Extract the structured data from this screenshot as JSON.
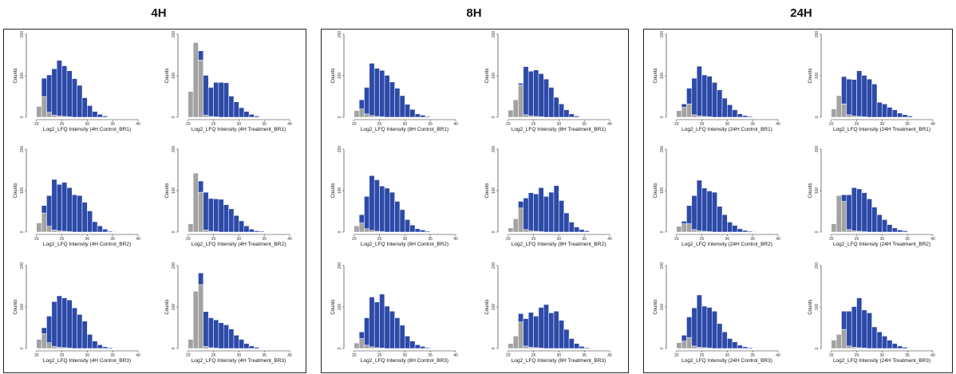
{
  "colors": {
    "gray": "#a3a3a3",
    "blue": "#2d4aa8",
    "edge": "#ffffff",
    "axis": "#222222"
  },
  "conditions": [
    {
      "title": "4H"
    },
    {
      "title": "8H"
    },
    {
      "title": "24H"
    }
  ],
  "chart_data": [
    {
      "type": "bar",
      "condition": "4H",
      "xlabel": "Log2_LFQ Intensity (4H Control_BR1)",
      "ylabel": "Counts",
      "xlim": [
        18,
        40
      ],
      "ylim": [
        0,
        200
      ],
      "xticks": [
        20,
        25,
        30,
        35,
        40
      ],
      "yticks": [
        0,
        100,
        200
      ],
      "bins": [
        20,
        21,
        22,
        23,
        24,
        25,
        26,
        27,
        28,
        29,
        30,
        31,
        32,
        33,
        34,
        35
      ],
      "gray": [
        26,
        50,
        12,
        5,
        3,
        2,
        1,
        0,
        0,
        0,
        0,
        0,
        0,
        0,
        0,
        0
      ],
      "blue": [
        0,
        44,
        90,
        112,
        134,
        122,
        111,
        93,
        77,
        47,
        28,
        14,
        7,
        3,
        1,
        1
      ]
    },
    {
      "type": "bar",
      "condition": "4H",
      "xlabel": "Log2_LFQ Intensity (4H Treatment_BR1)",
      "ylabel": "Counts",
      "xlim": [
        18,
        40
      ],
      "ylim": [
        0,
        200
      ],
      "xticks": [
        20,
        25,
        30,
        35,
        40
      ],
      "yticks": [
        0,
        100,
        200
      ],
      "bins": [
        20,
        21,
        22,
        23,
        24,
        25,
        26,
        27,
        28,
        29,
        30,
        31,
        32,
        33,
        34,
        35
      ],
      "gray": [
        62,
        180,
        138,
        5,
        2,
        1,
        0,
        0,
        0,
        0,
        0,
        0,
        0,
        0,
        0,
        0
      ],
      "blue": [
        0,
        0,
        22,
        96,
        70,
        83,
        84,
        83,
        51,
        37,
        23,
        14,
        7,
        3,
        1,
        1
      ]
    },
    {
      "type": "bar",
      "condition": "4H",
      "xlabel": "Log2_LFQ Intensity (4H Control_BR2)",
      "ylabel": "Counts",
      "xlim": [
        18,
        40
      ],
      "ylim": [
        0,
        200
      ],
      "xticks": [
        20,
        25,
        30,
        35,
        40
      ],
      "yticks": [
        0,
        100,
        200
      ],
      "bins": [
        20,
        21,
        22,
        23,
        24,
        25,
        26,
        27,
        28,
        29,
        30,
        31,
        32,
        33,
        34,
        35
      ],
      "gray": [
        22,
        46,
        14,
        5,
        3,
        2,
        1,
        0,
        0,
        0,
        0,
        0,
        0,
        0,
        0,
        0
      ],
      "blue": [
        0,
        18,
        74,
        122,
        112,
        118,
        106,
        90,
        88,
        72,
        51,
        25,
        15,
        7,
        2,
        1
      ]
    },
    {
      "type": "bar",
      "condition": "4H",
      "xlabel": "Log2_LFQ Intensity (4H Treatment_BR2)",
      "ylabel": "Counts",
      "xlim": [
        18,
        40
      ],
      "ylim": [
        0,
        200
      ],
      "xticks": [
        20,
        25,
        30,
        35,
        40
      ],
      "yticks": [
        0,
        100,
        200
      ],
      "bins": [
        20,
        21,
        22,
        23,
        24,
        25,
        26,
        27,
        28,
        29,
        30,
        31,
        32,
        33,
        34,
        35
      ],
      "gray": [
        20,
        142,
        96,
        5,
        2,
        1,
        0,
        0,
        0,
        0,
        0,
        0,
        0,
        0,
        0,
        0
      ],
      "blue": [
        0,
        0,
        27,
        91,
        79,
        79,
        79,
        66,
        56,
        40,
        27,
        15,
        7,
        3,
        2,
        1
      ]
    },
    {
      "type": "bar",
      "condition": "4H",
      "xlabel": "Log2_LFQ Intensity (4H Control_BR3)",
      "ylabel": "Counts",
      "xlim": [
        18,
        40
      ],
      "ylim": [
        0,
        200
      ],
      "xticks": [
        20,
        25,
        30,
        35,
        40
      ],
      "yticks": [
        0,
        100,
        200
      ],
      "bins": [
        20,
        21,
        22,
        23,
        24,
        25,
        26,
        27,
        28,
        29,
        30,
        31,
        32,
        33,
        34,
        35
      ],
      "gray": [
        22,
        36,
        14,
        5,
        3,
        2,
        1,
        0,
        0,
        0,
        0,
        0,
        0,
        0,
        0,
        0
      ],
      "blue": [
        0,
        14,
        64,
        108,
        124,
        120,
        116,
        98,
        82,
        66,
        34,
        18,
        9,
        4,
        2,
        1
      ]
    },
    {
      "type": "bar",
      "condition": "4H",
      "xlabel": "Log2_LFQ Intensity (4H Treatment_BR3)",
      "ylabel": "Counts",
      "xlim": [
        18,
        40
      ],
      "ylim": [
        0,
        200
      ],
      "xticks": [
        20,
        25,
        30,
        35,
        40
      ],
      "yticks": [
        0,
        100,
        200
      ],
      "bins": [
        20,
        21,
        22,
        23,
        24,
        25,
        26,
        27,
        28,
        29,
        30,
        31,
        32,
        33,
        34,
        35
      ],
      "gray": [
        22,
        138,
        154,
        5,
        2,
        1,
        0,
        0,
        0,
        0,
        0,
        0,
        0,
        0,
        0,
        0
      ],
      "blue": [
        0,
        0,
        28,
        84,
        72,
        68,
        62,
        57,
        47,
        32,
        22,
        12,
        6,
        3,
        1,
        1
      ]
    },
    {
      "type": "bar",
      "condition": "8H",
      "xlabel": "Log2_LFQ Intensity (8H Control_BR1)",
      "ylabel": "Counts",
      "xlim": [
        18,
        40
      ],
      "ylim": [
        0,
        200
      ],
      "xticks": [
        20,
        25,
        30,
        35,
        40
      ],
      "yticks": [
        0,
        100,
        200
      ],
      "bins": [
        20,
        21,
        22,
        23,
        24,
        25,
        26,
        27,
        28,
        29,
        30,
        31,
        32,
        33,
        34,
        35
      ],
      "gray": [
        16,
        20,
        8,
        4,
        2,
        1,
        0,
        0,
        0,
        0,
        0,
        0,
        0,
        0,
        0,
        0
      ],
      "blue": [
        0,
        22,
        64,
        126,
        116,
        112,
        101,
        85,
        70,
        52,
        31,
        19,
        8,
        5,
        2,
        1
      ]
    },
    {
      "type": "bar",
      "condition": "8H",
      "xlabel": "Log2_LFQ Intensity (8H Treatment_BR1)",
      "ylabel": "Counts",
      "xlim": [
        18,
        40
      ],
      "ylim": [
        0,
        200
      ],
      "xticks": [
        20,
        25,
        30,
        35,
        40
      ],
      "yticks": [
        0,
        100,
        200
      ],
      "bins": [
        20,
        21,
        22,
        23,
        24,
        25,
        26,
        27,
        28,
        29,
        30,
        31,
        32,
        33,
        34,
        35
      ],
      "gray": [
        17,
        42,
        78,
        6,
        3,
        2,
        1,
        0,
        0,
        0,
        0,
        0,
        0,
        0,
        0,
        0
      ],
      "blue": [
        0,
        0,
        4,
        116,
        108,
        112,
        104,
        92,
        72,
        48,
        32,
        18,
        8,
        3,
        1,
        1
      ]
    },
    {
      "type": "bar",
      "condition": "8H",
      "xlabel": "Log2_LFQ Intensity (8H Control_BR2)",
      "ylabel": "Counts",
      "xlim": [
        18,
        40
      ],
      "ylim": [
        0,
        200
      ],
      "xticks": [
        20,
        25,
        30,
        35,
        40
      ],
      "yticks": [
        0,
        100,
        200
      ],
      "bins": [
        20,
        21,
        22,
        23,
        24,
        25,
        26,
        27,
        28,
        29,
        30,
        31,
        32,
        33,
        34,
        35
      ],
      "gray": [
        15,
        22,
        8,
        4,
        2,
        1,
        0,
        0,
        0,
        0,
        0,
        0,
        0,
        0,
        0,
        0
      ],
      "blue": [
        0,
        20,
        78,
        132,
        124,
        110,
        106,
        96,
        74,
        54,
        30,
        17,
        8,
        5,
        2,
        1
      ]
    },
    {
      "type": "bar",
      "condition": "8H",
      "xlabel": "Log2_LFQ Intensity (8H Treatment_BR2)",
      "ylabel": "Counts",
      "xlim": [
        18,
        40
      ],
      "ylim": [
        0,
        200
      ],
      "xticks": [
        20,
        25,
        30,
        35,
        40
      ],
      "yticks": [
        0,
        100,
        200
      ],
      "bins": [
        20,
        21,
        22,
        23,
        24,
        25,
        26,
        27,
        28,
        29,
        30,
        31,
        32,
        33,
        34,
        35
      ],
      "gray": [
        10,
        32,
        58,
        6,
        3,
        2,
        1,
        0,
        0,
        0,
        0,
        0,
        0,
        0,
        0,
        0
      ],
      "blue": [
        0,
        0,
        16,
        76,
        92,
        90,
        106,
        86,
        96,
        112,
        76,
        46,
        24,
        12,
        6,
        3
      ]
    },
    {
      "type": "bar",
      "condition": "8H",
      "xlabel": "Log2_LFQ Intensity (8H Control_BR3)",
      "ylabel": "Counts",
      "xlim": [
        18,
        40
      ],
      "ylim": [
        0,
        200
      ],
      "xticks": [
        20,
        25,
        30,
        35,
        40
      ],
      "yticks": [
        0,
        100,
        200
      ],
      "bins": [
        20,
        21,
        22,
        23,
        24,
        25,
        26,
        27,
        28,
        29,
        30,
        31,
        32,
        33,
        34,
        35
      ],
      "gray": [
        13,
        24,
        8,
        4,
        2,
        1,
        0,
        0,
        0,
        0,
        0,
        0,
        0,
        0,
        0,
        0
      ],
      "blue": [
        0,
        16,
        66,
        120,
        110,
        130,
        102,
        90,
        74,
        56,
        30,
        18,
        9,
        5,
        2,
        1
      ]
    },
    {
      "type": "bar",
      "condition": "8H",
      "xlabel": "Log2_LFQ Intensity (8H Treatment_BR3)",
      "ylabel": "Counts",
      "xlim": [
        18,
        40
      ],
      "ylim": [
        0,
        200
      ],
      "xticks": [
        20,
        25,
        30,
        35,
        40
      ],
      "yticks": [
        0,
        100,
        200
      ],
      "bins": [
        20,
        21,
        22,
        23,
        24,
        25,
        26,
        27,
        28,
        29,
        30,
        31,
        32,
        33,
        34,
        35
      ],
      "gray": [
        12,
        30,
        64,
        6,
        3,
        2,
        1,
        0,
        0,
        0,
        0,
        0,
        0,
        0,
        0,
        0
      ],
      "blue": [
        0,
        0,
        20,
        66,
        84,
        76,
        98,
        106,
        86,
        90,
        68,
        46,
        24,
        12,
        5,
        2
      ]
    },
    {
      "type": "bar",
      "condition": "24H",
      "xlabel": "Log2_LFQ Intensity (24H Control_BR1)",
      "ylabel": "Counts",
      "xlim": [
        18,
        40
      ],
      "ylim": [
        0,
        200
      ],
      "xticks": [
        20,
        25,
        30,
        35,
        40
      ],
      "yticks": [
        0,
        100,
        200
      ],
      "bins": [
        20,
        21,
        22,
        23,
        24,
        25,
        26,
        27,
        28,
        29,
        30,
        31,
        32,
        33,
        34,
        35
      ],
      "gray": [
        16,
        24,
        32,
        6,
        3,
        2,
        1,
        0,
        0,
        0,
        0,
        0,
        0,
        0,
        0,
        0
      ],
      "blue": [
        0,
        8,
        38,
        88,
        120,
        100,
        98,
        84,
        66,
        46,
        30,
        18,
        8,
        4,
        2,
        1
      ]
    },
    {
      "type": "bar",
      "condition": "24H",
      "xlabel": "Log2_LFQ Intensity (24H Treatment_BR1)",
      "ylabel": "Counts",
      "xlim": [
        18,
        40
      ],
      "ylim": [
        0,
        200
      ],
      "xticks": [
        20,
        25,
        30,
        35,
        40
      ],
      "yticks": [
        0,
        100,
        200
      ],
      "bins": [
        20,
        21,
        22,
        23,
        24,
        25,
        26,
        27,
        28,
        29,
        30,
        31,
        32,
        33,
        34,
        35
      ],
      "gray": [
        20,
        52,
        32,
        6,
        3,
        2,
        1,
        0,
        0,
        0,
        0,
        0,
        0,
        0,
        0,
        0
      ],
      "blue": [
        0,
        0,
        66,
        86,
        88,
        110,
        100,
        92,
        80,
        36,
        32,
        24,
        18,
        10,
        6,
        3
      ]
    },
    {
      "type": "bar",
      "condition": "24H",
      "xlabel": "Log2_LFQ Intensity (24H Control_BR2)",
      "ylabel": "Counts",
      "xlim": [
        18,
        40
      ],
      "ylim": [
        0,
        200
      ],
      "xticks": [
        20,
        25,
        30,
        35,
        40
      ],
      "yticks": [
        0,
        100,
        200
      ],
      "bins": [
        20,
        21,
        22,
        23,
        24,
        25,
        26,
        27,
        28,
        29,
        30,
        31,
        32,
        33,
        34,
        35
      ],
      "gray": [
        14,
        20,
        20,
        6,
        3,
        2,
        1,
        0,
        0,
        0,
        0,
        0,
        0,
        0,
        0,
        0
      ],
      "blue": [
        0,
        6,
        44,
        82,
        122,
        104,
        98,
        96,
        62,
        42,
        24,
        16,
        8,
        4,
        2,
        1
      ]
    },
    {
      "type": "bar",
      "condition": "24H",
      "xlabel": "Log2_LFQ Intensity (24H Treatment_BR2)",
      "ylabel": "Counts",
      "xlim": [
        18,
        40
      ],
      "ylim": [
        0,
        200
      ],
      "xticks": [
        20,
        25,
        30,
        35,
        40
      ],
      "yticks": [
        0,
        100,
        200
      ],
      "bins": [
        20,
        21,
        22,
        23,
        24,
        25,
        26,
        27,
        28,
        29,
        30,
        31,
        32,
        33,
        34,
        35
      ],
      "gray": [
        20,
        88,
        74,
        6,
        3,
        2,
        1,
        0,
        0,
        0,
        0,
        0,
        0,
        0,
        0,
        0
      ],
      "blue": [
        0,
        0,
        16,
        84,
        104,
        102,
        94,
        80,
        60,
        42,
        30,
        18,
        10,
        5,
        3,
        1
      ]
    },
    {
      "type": "bar",
      "condition": "24H",
      "xlabel": "Log2_LFQ Intensity (24H Control_BR3)",
      "ylabel": "Counts",
      "xlim": [
        18,
        40
      ],
      "ylim": [
        0,
        200
      ],
      "xticks": [
        20,
        25,
        30,
        35,
        40
      ],
      "yticks": [
        0,
        100,
        200
      ],
      "bins": [
        20,
        21,
        22,
        23,
        24,
        25,
        26,
        27,
        28,
        29,
        30,
        31,
        32,
        33,
        34,
        35
      ],
      "gray": [
        14,
        18,
        26,
        6,
        3,
        2,
        1,
        0,
        0,
        0,
        0,
        0,
        0,
        0,
        0,
        0
      ],
      "blue": [
        0,
        14,
        50,
        92,
        126,
        100,
        98,
        90,
        60,
        40,
        24,
        16,
        8,
        4,
        2,
        1
      ]
    },
    {
      "type": "bar",
      "condition": "24H",
      "xlabel": "Log2_LFQ Intensity (24H Treatment_BR3)",
      "ylabel": "Counts",
      "xlim": [
        18,
        40
      ],
      "ylim": [
        0,
        200
      ],
      "xticks": [
        20,
        25,
        30,
        35,
        40
      ],
      "yticks": [
        0,
        100,
        200
      ],
      "bins": [
        20,
        21,
        22,
        23,
        24,
        25,
        26,
        27,
        28,
        29,
        30,
        31,
        32,
        33,
        34,
        35
      ],
      "gray": [
        20,
        34,
        46,
        6,
        3,
        2,
        1,
        0,
        0,
        0,
        0,
        0,
        0,
        0,
        0,
        0
      ],
      "blue": [
        0,
        0,
        44,
        84,
        98,
        120,
        92,
        86,
        52,
        40,
        30,
        20,
        12,
        6,
        3,
        1
      ]
    }
  ]
}
